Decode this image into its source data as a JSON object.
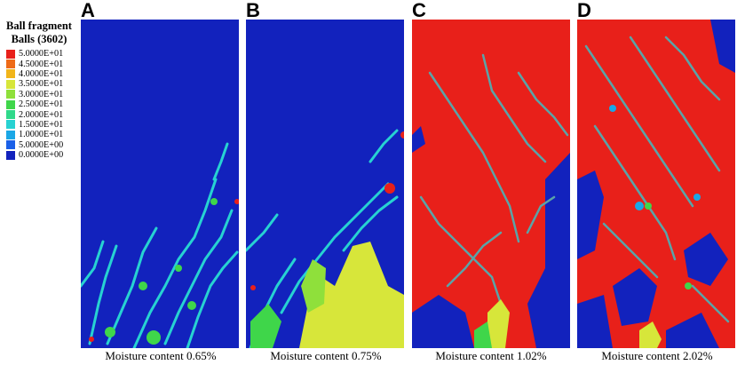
{
  "legend": {
    "title": "Ball fragment",
    "subtitle": "Balls (3602)",
    "entries": [
      {
        "label": "5.0000E+01",
        "color": "#e8201a"
      },
      {
        "label": "4.5000E+01",
        "color": "#ee6a17"
      },
      {
        "label": "4.0000E+01",
        "color": "#f1b51a"
      },
      {
        "label": "3.5000E+01",
        "color": "#d7e63a"
      },
      {
        "label": "3.0000E+01",
        "color": "#8fe03b"
      },
      {
        "label": "2.5000E+01",
        "color": "#3fd64a"
      },
      {
        "label": "2.0000E+01",
        "color": "#2fd98a"
      },
      {
        "label": "1.5000E+01",
        "color": "#27d2d2"
      },
      {
        "label": "1.0000E+01",
        "color": "#1aa7e6"
      },
      {
        "label": "5.0000E+00",
        "color": "#1a60e8"
      },
      {
        "label": "0.0000E+00",
        "color": "#1222bd"
      }
    ]
  },
  "panels": [
    {
      "letter": "A",
      "caption": "Moisture content 0.65%"
    },
    {
      "letter": "B",
      "caption": "Moisture content 0.75%"
    },
    {
      "letter": "C",
      "caption": "Moisture content 1.02%"
    },
    {
      "letter": "D",
      "caption": "Moisture content 2.02%"
    }
  ]
}
